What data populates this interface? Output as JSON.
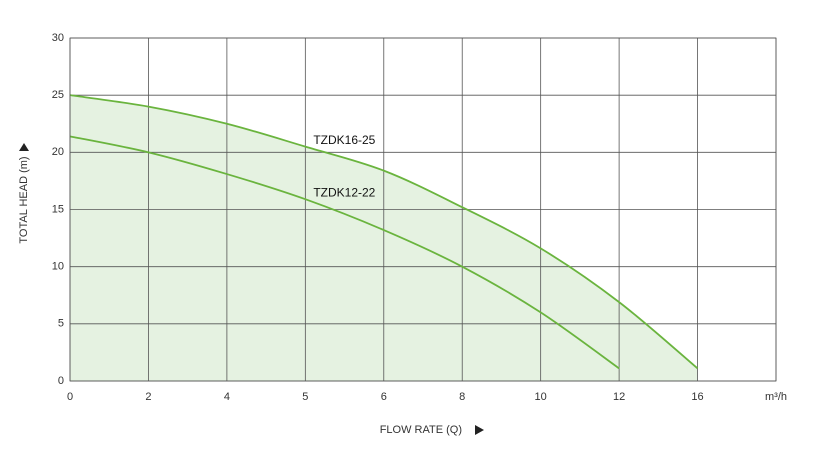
{
  "chart_data": {
    "type": "line",
    "x_label": "FLOW RATE (Q)",
    "y_label": "TOTAL HEAD (m)",
    "x_unit": "m³/h",
    "xticks": [
      0,
      2,
      4,
      5,
      6,
      8,
      10,
      12,
      16
    ],
    "ylim": [
      0,
      30
    ],
    "yticks": [
      0,
      5,
      10,
      15,
      20,
      25,
      30
    ],
    "grid": true,
    "fill_color": "#e5f2e1",
    "series": [
      {
        "name": "TZDK16-25",
        "color": "#6ab43e",
        "x": [
          0,
          2,
          4,
          5,
          6,
          8,
          10,
          12,
          16
        ],
        "values": [
          25,
          24.0,
          22.5,
          20.5,
          18.4,
          15.2,
          11.6,
          6.9,
          1.1
        ],
        "filled": true
      },
      {
        "name": "TZDK12-22",
        "color": "#6ab43e",
        "x": [
          0,
          2,
          4,
          5,
          6,
          8,
          10,
          12
        ],
        "values": [
          21.4,
          20.0,
          18.1,
          15.9,
          13.2,
          10.0,
          6.0,
          1.1
        ],
        "filled": false
      }
    ]
  }
}
